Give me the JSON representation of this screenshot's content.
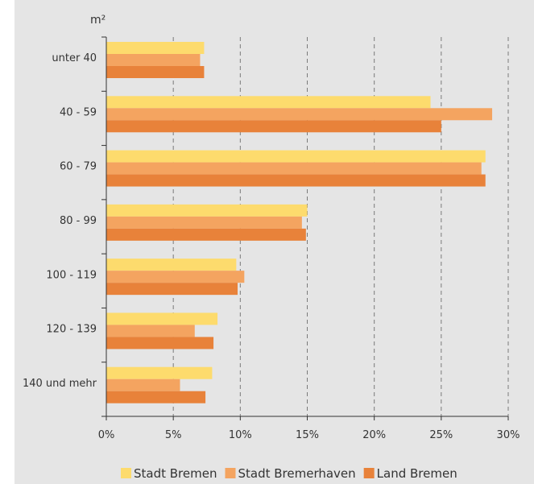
{
  "chart_data": {
    "type": "bar",
    "orientation": "horizontal",
    "ylabel": "m²",
    "categories": [
      "unter 40",
      "40 - 59",
      "60 - 79",
      "80 - 99",
      "100 - 119",
      "120 - 139",
      "140 und mehr"
    ],
    "x_ticks": [
      "0%",
      "5%",
      "10%",
      "15%",
      "20%",
      "25%",
      "30%"
    ],
    "xlim": [
      0,
      30
    ],
    "grid": "vertical dashed",
    "legend_position": "bottom",
    "series": [
      {
        "name": "Stadt Bremen",
        "color": "#fddb6d",
        "values": [
          7.3,
          24.2,
          28.3,
          15.0,
          9.7,
          8.3,
          7.9
        ]
      },
      {
        "name": "Stadt Bremerhaven",
        "color": "#f4a460",
        "values": [
          7.0,
          28.8,
          28.0,
          14.6,
          10.3,
          6.6,
          5.5
        ]
      },
      {
        "name": "Land Bremen",
        "color": "#e8823a",
        "values": [
          7.3,
          25.0,
          28.3,
          14.9,
          9.8,
          8.0,
          7.4
        ]
      }
    ]
  }
}
